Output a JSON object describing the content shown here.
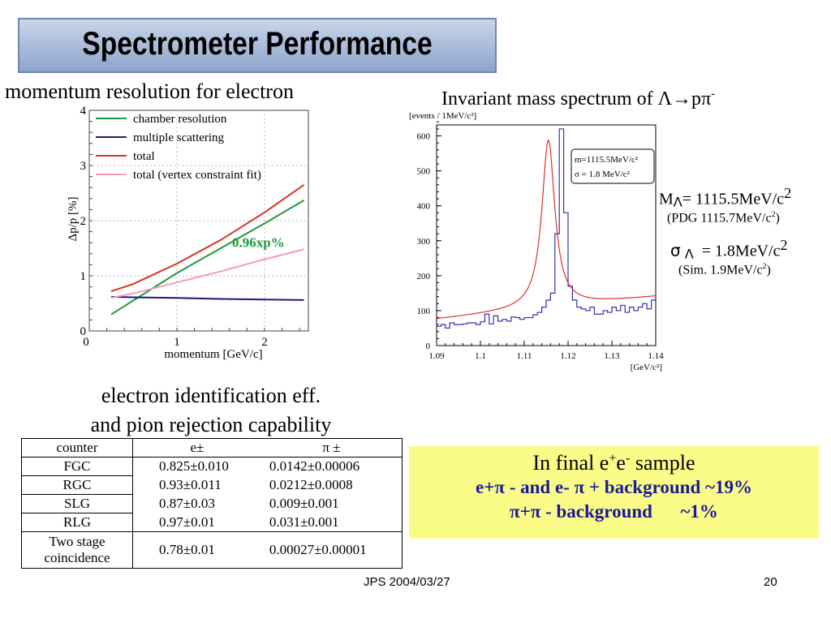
{
  "title": "Spectrometer Performance",
  "left_chart_heading": "momentum resolution for electron",
  "right_chart_heading": "Invariant mass spectrum of Λ→pπ",
  "right_chart_heading_sup": "-",
  "eid_heading_line1": "electron identification eff.",
  "eid_heading_line2": "and pion rejection capability",
  "table": {
    "headers": [
      "counter",
      "e±",
      "π ±"
    ],
    "rows": [
      [
        "FGC",
        "0.825±0.010",
        "0.0142±0.00006"
      ],
      [
        "RGC",
        "0.93±0.011",
        "0.0212±0.0008"
      ],
      [
        "SLG",
        "0.87±0.03",
        "0.009±0.001"
      ],
      [
        "RLG",
        "0.97±0.01",
        "0.031±0.001"
      ],
      [
        "Two stage coincidence",
        "0.78±0.01",
        "0.00027±0.00001"
      ]
    ]
  },
  "mass_info": {
    "m_line": "M",
    "m_sub": "Λ",
    "m_value": "= 1115.5MeV/c",
    "m_sup": "2",
    "pdg": "(PDG 1115.7MeV/c",
    "pdg_sup": "2",
    "pdg_close": ")",
    "sigma": "σ",
    "sigma_sub": "Λ",
    "sigma_value": "= 1.8MeV/c",
    "sigma_sup": "2",
    "sim": "(Sim. 1.9MeV/c",
    "sim_sup": "2",
    "sim_close": ")"
  },
  "yellow_box": {
    "line1_a": "In final e",
    "line1_sup1": "+",
    "line1_b": "e",
    "line1_sup2": "-",
    "line1_c": " sample",
    "line2": "e+π - and e- π + background ~19%",
    "line3": "π+π - background      ~1%"
  },
  "footer": {
    "date": "JPS 2004/03/27",
    "page": "20"
  },
  "chart_data": [
    {
      "type": "line",
      "title": "",
      "xlabel": "momentum [GeV/c]",
      "ylabel": "Δp/p [%]",
      "xlim": [
        0,
        2.5
      ],
      "ylim": [
        0,
        4
      ],
      "xticks": [
        "0",
        "1",
        "2"
      ],
      "yticks": [
        "0",
        "1",
        "2",
        "3",
        "4"
      ],
      "legend_position": "top-left",
      "annotation": "0.96xp%",
      "series": [
        {
          "name": "chamber resolution",
          "color": "#1e9a3e",
          "x": [
            0.25,
            0.5,
            1.0,
            1.5,
            2.0,
            2.45
          ],
          "y": [
            0.3,
            0.55,
            1.05,
            1.5,
            1.95,
            2.37
          ]
        },
        {
          "name": "multiple scattering",
          "color": "#1a1a7a",
          "x": [
            0.25,
            0.5,
            1.0,
            1.5,
            2.0,
            2.45
          ],
          "y": [
            0.62,
            0.61,
            0.6,
            0.58,
            0.57,
            0.56
          ]
        },
        {
          "name": "total",
          "color": "#d8321e",
          "x": [
            0.25,
            0.5,
            1.0,
            1.5,
            2.0,
            2.45
          ],
          "y": [
            0.72,
            0.85,
            1.22,
            1.65,
            2.15,
            2.65
          ]
        },
        {
          "name": "total (vertex constraint fit)",
          "color": "#f39ac4",
          "x": [
            0.25,
            0.5,
            1.0,
            1.5,
            2.0,
            2.45
          ],
          "y": [
            0.6,
            0.68,
            0.88,
            1.08,
            1.3,
            1.48
          ]
        }
      ]
    },
    {
      "type": "histogram",
      "title": "",
      "xlabel": "[GeV/c²]",
      "ylabel": "[events / 1MeV/c²]",
      "xlim": [
        1.09,
        1.14
      ],
      "ylim": [
        0,
        650
      ],
      "xticks": [
        "1.09",
        "1.1",
        "1.11",
        "1.12",
        "1.13",
        "1.14"
      ],
      "yticks": [
        "0",
        "100",
        "200",
        "300",
        "400",
        "500",
        "600"
      ],
      "legend": [
        "m=1115.5MeV/c²",
        "σ =   1.8  MeV/c²"
      ],
      "hist_color": "#3333aa",
      "fit_color": "#e03030",
      "bin_start": 1.09,
      "bin_width": 0.001,
      "hist_values": [
        55,
        60,
        50,
        65,
        60,
        60,
        62,
        65,
        65,
        60,
        68,
        90,
        62,
        85,
        70,
        75,
        70,
        82,
        80,
        75,
        80,
        80,
        88,
        95,
        110,
        130,
        150,
        320,
        620,
        380,
        170,
        130,
        110,
        105,
        100,
        110,
        90,
        90,
        100,
        95,
        110,
        100,
        115,
        95,
        110,
        100,
        110,
        120,
        105,
        130
      ],
      "fit_peak_mass": 1.1155,
      "fit_sigma": 0.0018,
      "fit_amplitude": 480,
      "fit_background": [
        75,
        140
      ]
    }
  ]
}
